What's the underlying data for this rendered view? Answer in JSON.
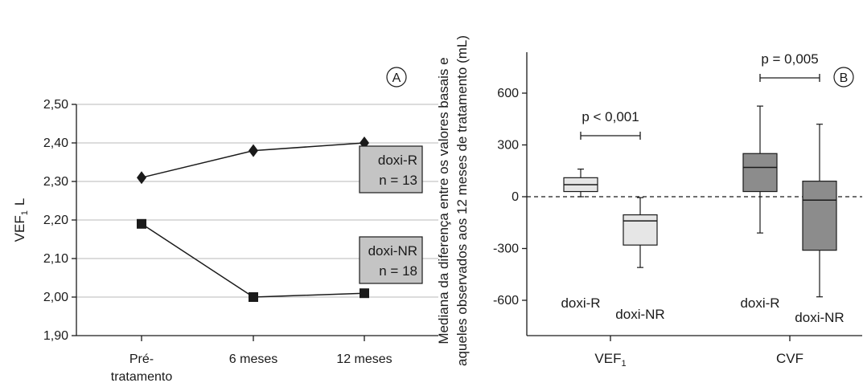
{
  "chart_data": [
    {
      "type": "line",
      "panel_label": "A",
      "ylabel": "VEF",
      "ylabel_sub": "1",
      "ylabel_unit": "L",
      "categories": [
        "Pré-tratamento",
        "6 meses",
        "12 meses"
      ],
      "category_lines": [
        [
          "Pré-",
          "tratamento"
        ],
        [
          "6 meses"
        ],
        [
          "12 meses"
        ]
      ],
      "ylim": [
        1.9,
        2.5
      ],
      "yticks": [
        "1,90",
        "2,00",
        "2,10",
        "2,20",
        "2,30",
        "2,40",
        "2,50"
      ],
      "grid": true,
      "series": [
        {
          "name": "doxi-R",
          "marker": "diamond",
          "values": [
            2.31,
            2.38,
            2.4
          ],
          "box_lines": [
            "doxi-R",
            "n = 13"
          ]
        },
        {
          "name": "doxi-NR",
          "marker": "square",
          "values": [
            2.19,
            2.0,
            2.01
          ],
          "box_lines": [
            "doxi-NR",
            "n = 18"
          ]
        }
      ],
      "box_color": "#c4c4c4"
    },
    {
      "type": "box",
      "panel_label": "B",
      "ylabel_lines": [
        "Mediana da diferença entre os valores basais e",
        "aqueles observados aos 12 meses de tratamento (mL)"
      ],
      "ylim": [
        -800,
        800
      ],
      "yticks": [
        "-600",
        "-300",
        "0",
        "300",
        "600"
      ],
      "ytick_values": [
        -600,
        -300,
        0,
        300,
        600
      ],
      "reference_line": 0,
      "groups": [
        {
          "label": "VEF",
          "label_sub": "1",
          "p_text": "p < 0,001",
          "boxes": [
            {
              "name": "doxi-R",
              "min": 0,
              "q1": 30,
              "median": 70,
              "q3": 110,
              "max": 160,
              "color": "#e6e6e6"
            },
            {
              "name": "doxi-NR",
              "min": -410,
              "q1": -280,
              "median": -140,
              "q3": -105,
              "max": -5,
              "color": "#e6e6e6"
            }
          ]
        },
        {
          "label": "CVF",
          "label_sub": "",
          "p_text": "p = 0,005",
          "boxes": [
            {
              "name": "doxi-R",
              "min": -210,
              "q1": 30,
              "median": 170,
              "q3": 250,
              "max": 525,
              "color": "#8c8c8c"
            },
            {
              "name": "doxi-NR",
              "min": -580,
              "q1": -310,
              "median": -20,
              "q3": 90,
              "max": 420,
              "color": "#8c8c8c"
            }
          ]
        }
      ]
    }
  ]
}
